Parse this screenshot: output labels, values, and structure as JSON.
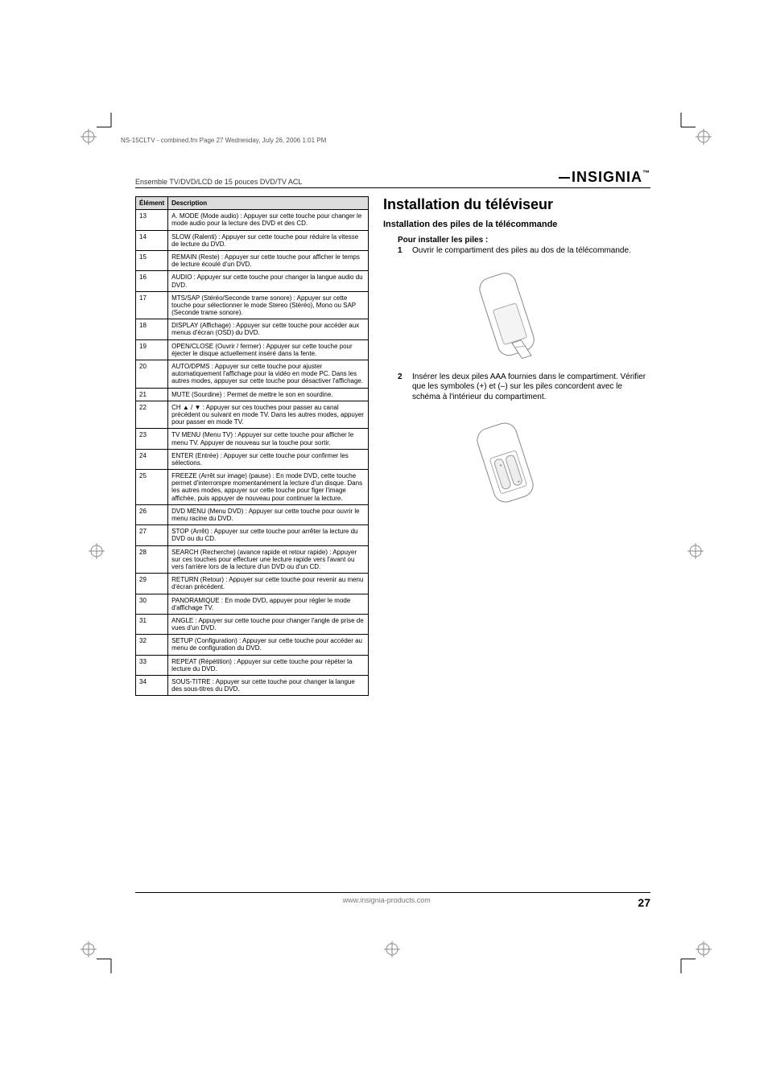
{
  "print_header": "NS-15CLTV - combined.fm  Page 27  Wednesday, July 26, 2006  1:01 PM",
  "doc_subtitle": "Ensemble TV/DVD/LCD de 15 pouces DVD/TV ACL",
  "brand": "INSIGNIA",
  "table": {
    "headers": [
      "Élément",
      "Description"
    ],
    "rows": [
      [
        "13",
        "A. MODE (Mode audio) : Appuyer sur cette touche pour changer le mode audio pour la lecture des DVD et des CD."
      ],
      [
        "14",
        "SLOW (Ralenti) : Appuyer sur cette touche pour réduire la vitesse de lecture du DVD."
      ],
      [
        "15",
        "REMAIN (Reste) : Appuyer sur cette touche pour afficher le temps de lecture écoulé d'un DVD."
      ],
      [
        "16",
        "AUDIO : Appuyer sur cette touche pour changer la langue audio du DVD."
      ],
      [
        "17",
        "MTS/SAP (Stéréo/Seconde trame sonore) : Appuyer sur cette touche pour sélectionner le mode Stereo (Stéréo), Mono ou SAP (Seconde trame sonore)."
      ],
      [
        "18",
        "DISPLAY (Affichage) : Appuyer sur cette touche pour accéder aux menus d'écran (OSD) du DVD."
      ],
      [
        "19",
        "OPEN/CLOSE (Ouvrir / fermer) : Appuyer sur cette touche pour éjecter le disque actuellement inséré dans la fente."
      ],
      [
        "20",
        "AUTO/DPMS : Appuyer sur cette touche pour ajuster automatiquement l'affichage pour la vidéo en mode PC. Dans les autres modes, appuyer sur cette touche pour désactiver l'affichage."
      ],
      [
        "21",
        "MUTE (Sourdine) : Permet de mettre le son en sourdine."
      ],
      [
        "22",
        "CH ▲ / ▼ : Appuyer sur ces touches pour passer au canal précédent ou suivant en mode TV. Dans les autres modes, appuyer pour passer en mode TV."
      ],
      [
        "23",
        "TV MENU (Menu TV) : Appuyer sur cette touche pour afficher le menu TV. Appuyer de nouveau sur la touche pour sortir."
      ],
      [
        "24",
        "ENTER (Entrée) : Appuyer sur cette touche pour confirmer les sélections."
      ],
      [
        "25",
        "FREEZE (Arrêt sur image) (pause) : En mode DVD, cette touche permet d'interrompre momentanément la lecture d'un disque. Dans les autres modes, appuyer sur cette touche pour figer l'image affichée, puis appuyer de nouveau pour continuer la lecture."
      ],
      [
        "26",
        "DVD MENU (Menu DVD) : Appuyer sur cette touche pour ouvrir le menu racine du DVD."
      ],
      [
        "27",
        "STOP (Arrêt) : Appuyer sur cette touche pour arrêter la lecture du DVD ou du CD."
      ],
      [
        "28",
        "SEARCH (Recherche) (avance rapide et retour rapide) : Appuyer sur ces touches pour effectuer une lecture rapide vers l'avant ou vers l'arrière lors de la lecture d'un DVD ou d'un CD."
      ],
      [
        "29",
        "RETURN (Retour) : Appuyer sur cette touche pour revenir au menu d'écran précédent."
      ],
      [
        "30",
        "PANORAMIQUE : En mode DVD, appuyer pour régler le mode d'affichage TV."
      ],
      [
        "31",
        "ANGLE : Appuyer sur cette touche pour changer l'angle de prise de vues d'un DVD."
      ],
      [
        "32",
        "SETUP (Configuration) : Appuyer sur cette touche pour accéder au menu de configuration du DVD."
      ],
      [
        "33",
        "REPEAT (Répétition) : Appuyer sur cette touche pour répéter la lecture du DVD."
      ],
      [
        "34",
        "SOUS-TITRE : Appuyer sur cette touche pour changer la langue des sous-titres du DVD."
      ]
    ]
  },
  "right": {
    "title": "Installation du téléviseur",
    "subtitle": "Installation des piles de la télécommande",
    "steps_title": "Pour installer les piles :",
    "step1_num": "1",
    "step1_text": "Ouvrir le compartiment des piles au dos de la télécommande.",
    "step2_num": "2",
    "step2_text": "Insérer les deux piles AAA fournies dans le compartiment. Vérifier que les symboles (+) et (–) sur les piles concordent avec le schéma à l'intérieur du compartiment."
  },
  "footer": {
    "url": "www.insignia-products.com",
    "page": "27"
  },
  "colors": {
    "text": "#000000",
    "muted": "#777777",
    "th_bg": "#dcdcdc",
    "border": "#000000"
  }
}
